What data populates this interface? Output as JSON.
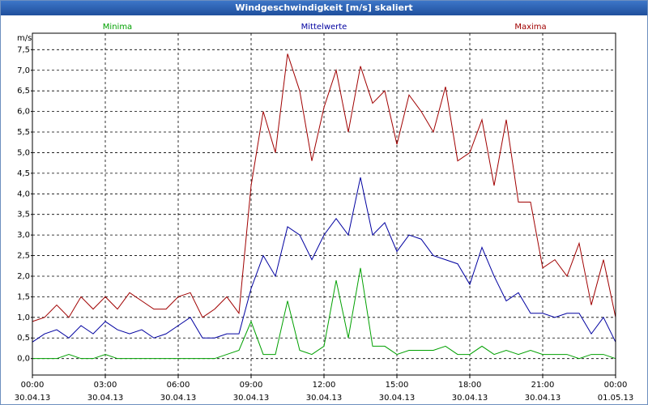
{
  "window": {
    "title": "Windgeschwindigkeit [m/s] skaliert"
  },
  "chart_data": {
    "type": "line",
    "ylabel": "m/s",
    "x": [
      0,
      0.5,
      1,
      1.5,
      2,
      2.5,
      3,
      3.5,
      4,
      4.5,
      5,
      5.5,
      6,
      6.5,
      7,
      7.5,
      8,
      8.5,
      9,
      9.5,
      10,
      10.5,
      11,
      11.5,
      12,
      12.5,
      13,
      13.5,
      14,
      14.5,
      15,
      15.5,
      16,
      16.5,
      17,
      17.5,
      18,
      18.5,
      19,
      19.5,
      20,
      20.5,
      21,
      21.5,
      22,
      22.5,
      23,
      23.5,
      24
    ],
    "series": [
      {
        "name": "Minima",
        "color": "#00a000",
        "values": [
          0,
          0,
          0,
          0.1,
          0,
          0,
          0.1,
          0,
          0,
          0,
          0,
          0,
          0,
          0,
          0,
          0,
          0.1,
          0.2,
          0.9,
          0.1,
          0.1,
          1.4,
          0.2,
          0.1,
          0.3,
          1.9,
          0.5,
          2.2,
          0.3,
          0.3,
          0.1,
          0.2,
          0.2,
          0.2,
          0.3,
          0.1,
          0.1,
          0.3,
          0.1,
          0.2,
          0.1,
          0.2,
          0.1,
          0.1,
          0.1,
          0,
          0.1,
          0.1,
          0
        ]
      },
      {
        "name": "Mittelwerte",
        "color": "#0000a0",
        "values": [
          0.4,
          0.6,
          0.7,
          0.5,
          0.8,
          0.6,
          0.9,
          0.7,
          0.6,
          0.7,
          0.5,
          0.6,
          0.8,
          1.0,
          0.5,
          0.5,
          0.6,
          0.6,
          1.7,
          2.5,
          2.0,
          3.2,
          3.0,
          2.4,
          3.0,
          3.4,
          3.0,
          4.4,
          3.0,
          3.3,
          2.6,
          3.0,
          2.9,
          2.5,
          2.4,
          2.3,
          1.8,
          2.7,
          2.0,
          1.4,
          1.6,
          1.1,
          1.1,
          1.0,
          1.1,
          1.1,
          0.6,
          1.0,
          0.4
        ]
      },
      {
        "name": "Maxima",
        "color": "#a00000",
        "values": [
          0.9,
          1.0,
          1.3,
          1.0,
          1.5,
          1.2,
          1.5,
          1.2,
          1.6,
          1.4,
          1.2,
          1.2,
          1.5,
          1.6,
          1.0,
          1.2,
          1.5,
          1.1,
          4.2,
          6.0,
          5.0,
          7.4,
          6.5,
          4.8,
          6.1,
          7.0,
          5.5,
          7.1,
          6.2,
          6.5,
          5.2,
          6.4,
          6.0,
          5.5,
          6.6,
          4.8,
          5.0,
          5.8,
          4.2,
          5.8,
          3.8,
          3.8,
          2.2,
          2.4,
          2.0,
          2.8,
          1.3,
          2.4,
          1.0
        ]
      }
    ],
    "xlim": [
      0,
      24
    ],
    "xticks": [
      {
        "value": 0,
        "label": "00:00",
        "date": "30.04.13"
      },
      {
        "value": 3,
        "label": "03:00",
        "date": "30.04.13"
      },
      {
        "value": 6,
        "label": "06:00",
        "date": "30.04.13"
      },
      {
        "value": 9,
        "label": "09:00",
        "date": "30.04.13"
      },
      {
        "value": 12,
        "label": "12:00",
        "date": "30.04.13"
      },
      {
        "value": 15,
        "label": "15:00",
        "date": "30.04.13"
      },
      {
        "value": 18,
        "label": "18:00",
        "date": "30.04.13"
      },
      {
        "value": 21,
        "label": "21:00",
        "date": "30.04.13"
      },
      {
        "value": 24,
        "label": "00:00",
        "date": "01.05.13"
      }
    ],
    "ylim": [
      -0.4,
      7.9
    ],
    "yticks": [
      {
        "value": 0,
        "label": "0,0"
      },
      {
        "value": 0.5,
        "label": "0,5"
      },
      {
        "value": 1,
        "label": "1,0"
      },
      {
        "value": 1.5,
        "label": "1,5"
      },
      {
        "value": 2,
        "label": "2,0"
      },
      {
        "value": 2.5,
        "label": "2,5"
      },
      {
        "value": 3,
        "label": "3,0"
      },
      {
        "value": 3.5,
        "label": "3,5"
      },
      {
        "value": 4,
        "label": "4,0"
      },
      {
        "value": 4.5,
        "label": "4,5"
      },
      {
        "value": 5,
        "label": "5,0"
      },
      {
        "value": 5.5,
        "label": "5,5"
      },
      {
        "value": 6,
        "label": "6,0"
      },
      {
        "value": 6.5,
        "label": "6,5"
      },
      {
        "value": 7,
        "label": "7,0"
      },
      {
        "value": 7.5,
        "label": "7,5"
      }
    ],
    "grid": true
  }
}
